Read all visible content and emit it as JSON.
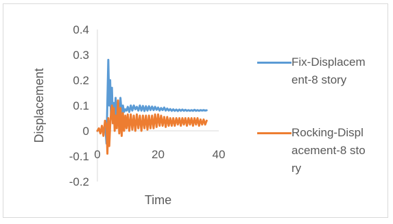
{
  "chart_data": {
    "type": "line",
    "title": "",
    "xlabel": "Time",
    "ylabel": "Displacement",
    "xlim": [
      0,
      40
    ],
    "ylim": [
      -0.2,
      0.4
    ],
    "x_ticks": [
      "0",
      "20",
      "40"
    ],
    "y_ticks": [
      "0.4",
      "0.3",
      "0.2",
      "0.1",
      "0",
      "-0.1",
      "-0.2"
    ],
    "grid": "none",
    "legend_position": "right",
    "series": [
      {
        "name": "Fix-Displacement-8 story",
        "color": "#5b9bd5",
        "x": [
          0,
          0.5,
          1,
          1.5,
          2,
          2.5,
          3,
          3.3,
          3.6,
          3.9,
          4.2,
          4.5,
          4.8,
          5.1,
          5.4,
          5.7,
          6,
          6.4,
          6.8,
          7.2,
          7.6,
          8,
          8.4,
          8.8,
          9.2,
          9.6,
          10,
          10.5,
          11,
          11.5,
          12,
          12.5,
          13,
          13.5,
          14,
          14.5,
          15,
          15.5,
          16,
          16.5,
          17,
          17.5,
          18,
          18.5,
          19,
          19.5,
          20,
          20.5,
          21,
          21.5,
          22,
          22.5,
          23,
          23.5,
          24,
          24.5,
          25,
          25.5,
          26,
          26.5,
          27,
          27.5,
          28,
          28.5,
          29,
          29.5,
          30,
          30.5,
          31,
          31.5,
          32,
          32.5,
          33,
          33.5,
          34,
          34.5,
          35,
          35.5,
          36
        ],
        "values": [
          0,
          0.005,
          -0.005,
          0.01,
          -0.01,
          0.03,
          -0.05,
          0.12,
          0.28,
          0.1,
          0.2,
          0.05,
          0.17,
          0.03,
          0.11,
          0.04,
          0.13,
          0.05,
          0.11,
          0.06,
          0.13,
          0.07,
          0.1,
          0.075,
          0.085,
          0.08,
          0.095,
          0.075,
          0.1,
          0.08,
          0.1,
          0.085,
          0.095,
          0.08,
          0.1,
          0.08,
          0.098,
          0.078,
          0.097,
          0.08,
          0.097,
          0.082,
          0.096,
          0.082,
          0.095,
          0.083,
          0.092,
          0.08,
          0.09,
          0.082,
          0.092,
          0.08,
          0.088,
          0.08,
          0.086,
          0.079,
          0.085,
          0.079,
          0.084,
          0.078,
          0.084,
          0.079,
          0.084,
          0.079,
          0.083,
          0.079,
          0.082,
          0.079,
          0.082,
          0.079,
          0.083,
          0.079,
          0.082,
          0.079,
          0.082,
          0.08,
          0.082,
          0.08,
          0.081
        ]
      },
      {
        "name": "Rocking-Displacement-8 story",
        "color": "#ed7d31",
        "x": [
          0,
          0.5,
          1,
          1.5,
          2,
          2.5,
          3,
          3.3,
          3.6,
          3.9,
          4.2,
          4.5,
          4.8,
          5.1,
          5.4,
          5.7,
          6,
          6.4,
          6.8,
          7.2,
          7.6,
          8,
          8.4,
          8.8,
          9.2,
          9.6,
          10,
          10.5,
          11,
          11.5,
          12,
          12.5,
          13,
          13.5,
          14,
          14.5,
          15,
          15.5,
          16,
          16.5,
          17,
          17.5,
          18,
          18.5,
          19,
          19.5,
          20,
          20.5,
          21,
          21.5,
          22,
          22.5,
          23,
          23.5,
          24,
          24.5,
          25,
          25.5,
          26,
          26.5,
          27,
          27.5,
          28,
          28.5,
          29,
          29.5,
          30,
          30.5,
          31,
          31.5,
          32,
          32.5,
          33,
          33.5,
          34,
          34.5,
          35,
          35.5,
          36
        ],
        "values": [
          0,
          0.01,
          -0.01,
          0.02,
          -0.02,
          0.04,
          0.02,
          -0.09,
          0.05,
          -0.06,
          0.02,
          0.07,
          0.1,
          0.03,
          0.09,
          0.0,
          0.06,
          0.01,
          0.12,
          -0.01,
          0.09,
          -0.02,
          0.07,
          0.0,
          0.06,
          0.01,
          0.065,
          0.0,
          0.065,
          0.005,
          0.06,
          0.0,
          0.065,
          0.01,
          0.06,
          0.0,
          0.06,
          0.01,
          0.06,
          0.005,
          0.06,
          0.01,
          0.06,
          0.01,
          0.065,
          0.015,
          0.065,
          0.02,
          0.06,
          0.02,
          0.055,
          0.015,
          0.055,
          0.02,
          0.05,
          0.02,
          0.05,
          0.02,
          0.05,
          0.025,
          0.05,
          0.02,
          0.05,
          0.025,
          0.05,
          0.02,
          0.05,
          0.025,
          0.05,
          0.02,
          0.05,
          0.025,
          0.05,
          0.02,
          0.045,
          0.025,
          0.045,
          0.025,
          0.04
        ]
      }
    ],
    "legend": [
      {
        "label": "Fix-Displacement-8 story",
        "color": "#5b9bd5"
      },
      {
        "label": "Rocking-Displacement-8 story",
        "color": "#ed7d31"
      }
    ]
  }
}
